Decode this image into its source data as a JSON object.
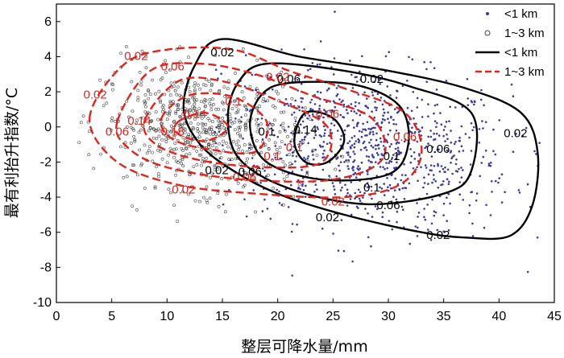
{
  "chart_data": {
    "type": "scatter",
    "title": "",
    "xlabel": "整层可降水量/mm",
    "ylabel": "最有利抬升指数/°C",
    "xlim": [
      0,
      45
    ],
    "ylim": [
      -10,
      7
    ],
    "xticks": [
      0,
      5,
      10,
      15,
      20,
      25,
      30,
      35,
      40,
      45
    ],
    "yticks": [
      6,
      4,
      2,
      0,
      -2,
      -4,
      -6,
      -8,
      -10
    ],
    "grid": false,
    "legend_position": "top-right",
    "colors": {
      "lt1km": "#3a3aa0",
      "km1to3_marker": "#444444",
      "contour_lt1": "#000000",
      "contour_13": "#e0241b"
    },
    "legend": [
      {
        "label": "<1 km",
        "kind": "dot"
      },
      {
        "label": "1~3 km",
        "kind": "circle"
      },
      {
        "label": "<1 km",
        "kind": "solid"
      },
      {
        "label": "1~3 km",
        "kind": "dashed"
      }
    ],
    "series": [
      {
        "name": "<1 km",
        "kind": "scatter",
        "center": [
          28,
          -1.2
        ],
        "spread": [
          6.5,
          2.3
        ],
        "n": 900,
        "range_x": [
          14,
          45
        ],
        "range_y": [
          -9,
          7
        ]
      },
      {
        "name": "1~3 km",
        "kind": "scatter",
        "center": [
          13,
          -0.2
        ],
        "spread": [
          4.5,
          1.7
        ],
        "n": 650,
        "range_x": [
          2,
          32
        ],
        "range_y": [
          -6.5,
          5
        ]
      },
      {
        "name": "<1 km",
        "kind": "contour",
        "levels": [
          {
            "level": "0.02",
            "points": [
              [
                15,
                5
              ],
              [
                22,
                4
              ],
              [
                30,
                3.2
              ],
              [
                37,
                2.2
              ],
              [
                42,
                0.8
              ],
              [
                43.5,
                -1.5
              ],
              [
                43,
                -4.5
              ],
              [
                41,
                -6.2
              ],
              [
                37,
                -6.3
              ],
              [
                33,
                -6
              ],
              [
                26,
                -5
              ],
              [
                20,
                -3.8
              ],
              [
                16,
                -2.5
              ],
              [
                13,
                -1
              ],
              [
                11.5,
                1
              ],
              [
                12.5,
                3.5
              ],
              [
                15,
                5
              ]
            ]
          },
          {
            "level": "0.06",
            "points": [
              [
                19,
                3.6
              ],
              [
                26,
                3.2
              ],
              [
                32,
                2.3
              ],
              [
                37.5,
                0.8
              ],
              [
                37.5,
                -2.5
              ],
              [
                35,
                -3.8
              ],
              [
                28,
                -4.4
              ],
              [
                21,
                -3.5
              ],
              [
                16.5,
                -1.8
              ],
              [
                15.5,
                0.6
              ],
              [
                16.5,
                2.6
              ],
              [
                19,
                3.6
              ]
            ]
          },
          {
            "level": "0.1",
            "points": [
              [
                21,
                2.5
              ],
              [
                27,
                2.4
              ],
              [
                31,
                1.2
              ],
              [
                31.8,
                -1
              ],
              [
                30,
                -2.7
              ],
              [
                24,
                -3
              ],
              [
                19,
                -2
              ],
              [
                17.5,
                0
              ],
              [
                18.5,
                1.8
              ],
              [
                21,
                2.5
              ]
            ]
          },
          {
            "level": "0.14",
            "points": [
              [
                22.5,
                0.8
              ],
              [
                25,
                0.5
              ],
              [
                26,
                -0.8
              ],
              [
                24.5,
                -2
              ],
              [
                22.5,
                -2
              ],
              [
                21.5,
                -0.8
              ],
              [
                22.5,
                0.8
              ]
            ]
          }
        ],
        "labels": [
          {
            "text": "0.02",
            "x": 15,
            "y": 4.2
          },
          {
            "text": "0.02",
            "x": 28.5,
            "y": 2.7
          },
          {
            "text": "0.02",
            "x": 41.5,
            "y": -0.4
          },
          {
            "text": "0.02",
            "x": 34.5,
            "y": -6.2
          },
          {
            "text": "0.02",
            "x": 24.5,
            "y": -5.2
          },
          {
            "text": "0.06",
            "x": 21,
            "y": 2.7
          },
          {
            "text": "0.06",
            "x": 34.5,
            "y": -1.3
          },
          {
            "text": "0.06",
            "x": 17.5,
            "y": -2.6
          },
          {
            "text": "0.06",
            "x": 30,
            "y": -4.5
          },
          {
            "text": "0.1",
            "x": 19,
            "y": -0.3
          },
          {
            "text": "0.1",
            "x": 30.3,
            "y": -1.7
          },
          {
            "text": "0.1",
            "x": 28.5,
            "y": -3.5
          },
          {
            "text": "0.14",
            "x": 22.5,
            "y": -0.2
          },
          {
            "text": "0.02",
            "x": 14.5,
            "y": -2.5
          }
        ]
      },
      {
        "name": "1~3 km",
        "kind": "contour",
        "levels": [
          {
            "level": "0.02",
            "points": [
              [
                3,
                0.5
              ],
              [
                6,
                3.5
              ],
              [
                10,
                4.4
              ],
              [
                16,
                4.4
              ],
              [
                21,
                3.2
              ],
              [
                26,
                2.2
              ],
              [
                31.5,
                0.8
              ],
              [
                33,
                -1.5
              ],
              [
                31,
                -3.3
              ],
              [
                26,
                -4
              ],
              [
                18,
                -3.8
              ],
              [
                11,
                -3.3
              ],
              [
                5.5,
                -2
              ],
              [
                3,
                0.5
              ]
            ]
          },
          {
            "level": "0.06",
            "points": [
              [
                5.5,
                0.3
              ],
              [
                8.5,
                3.2
              ],
              [
                13,
                3.6
              ],
              [
                18,
                3
              ],
              [
                23,
                1.8
              ],
              [
                28.5,
                0.5
              ],
              [
                29.5,
                -1.8
              ],
              [
                25,
                -3
              ],
              [
                17,
                -3
              ],
              [
                10,
                -2.3
              ],
              [
                6.5,
                -1.2
              ],
              [
                5.5,
                0.3
              ]
            ]
          },
          {
            "level": "0.1",
            "points": [
              [
                8,
                0.4
              ],
              [
                11,
                2.6
              ],
              [
                15,
                2.6
              ],
              [
                20,
                1.5
              ],
              [
                24.5,
                0
              ],
              [
                24,
                -2
              ],
              [
                19,
                -2.3
              ],
              [
                13,
                -1.9
              ],
              [
                9,
                -1
              ],
              [
                8,
                0.4
              ]
            ]
          },
          {
            "level": "0.14",
            "points": [
              [
                9.5,
                0.5
              ],
              [
                12,
                1.8
              ],
              [
                16,
                1.7
              ],
              [
                19,
                0.3
              ],
              [
                18,
                -1.4
              ],
              [
                14,
                -1.3
              ],
              [
                10.5,
                -0.7
              ],
              [
                9.5,
                0.5
              ]
            ]
          },
          {
            "level": "0.18",
            "points": [
              [
                11,
                0.3
              ],
              [
                13.5,
                0.8
              ],
              [
                15.5,
                0
              ],
              [
                13.5,
                -0.8
              ],
              [
                11,
                -0.4
              ],
              [
                11,
                0.3
              ]
            ]
          }
        ],
        "labels": [
          {
            "text": "0.02",
            "x": 7.2,
            "y": 4
          },
          {
            "text": "0.02",
            "x": 3.5,
            "y": 1.8
          },
          {
            "text": "0.02",
            "x": 11.5,
            "y": -3.6
          },
          {
            "text": "0.02",
            "x": 25,
            "y": -4.3
          },
          {
            "text": "0.06",
            "x": 10.5,
            "y": 3.4
          },
          {
            "text": "0.06",
            "x": 5.5,
            "y": -0.3
          },
          {
            "text": "0.06",
            "x": 17,
            "y": -2.9
          },
          {
            "text": "0.02",
            "x": 20,
            "y": 2.8
          },
          {
            "text": "0.1",
            "x": 16,
            "y": 1.4
          },
          {
            "text": "0.14",
            "x": 7.5,
            "y": 0.3
          },
          {
            "text": "0.14",
            "x": 12.5,
            "y": 0.7
          },
          {
            "text": "0.18",
            "x": 10.5,
            "y": -0.3
          },
          {
            "text": "0.06",
            "x": 24.5,
            "y": 0.7
          },
          {
            "text": "0.1",
            "x": 21.5,
            "y": -1.2
          },
          {
            "text": "0.06",
            "x": 31.5,
            "y": -0.6
          },
          {
            "text": "0.1",
            "x": 19.5,
            "y": -1.7
          }
        ]
      }
    ]
  }
}
